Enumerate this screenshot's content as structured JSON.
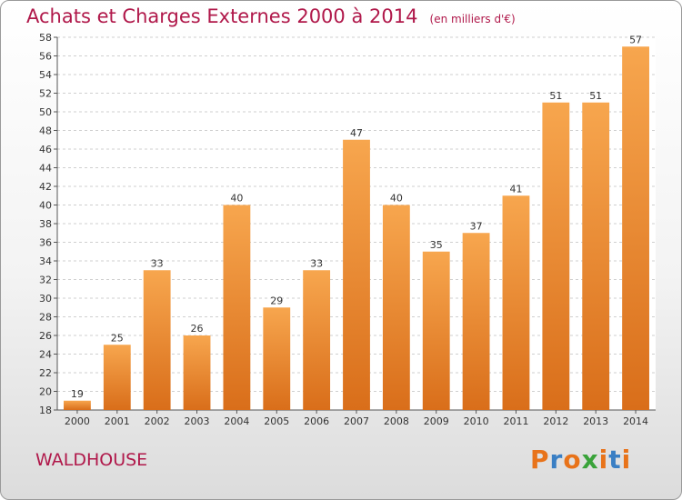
{
  "title": "Achats et Charges Externes 2000 à 2014",
  "unit": "(en milliers d'€)",
  "commune": "WALDHOUSE",
  "logo": {
    "text": "Proxiti",
    "colors": [
      "#e8731a",
      "#3a7fc4",
      "#e8731a",
      "#3aa33a",
      "#e8731a",
      "#3a7fc4",
      "#e8731a"
    ]
  },
  "colors": {
    "title": "#b0184a",
    "bar_light": "#f7a64e",
    "bar_dark": "#d96e1a",
    "grid": "#cfcfcf"
  },
  "chart_data": {
    "type": "bar",
    "title": "Achats et Charges Externes 2000 à 2014",
    "categories": [
      "2000",
      "2001",
      "2002",
      "2003",
      "2004",
      "2005",
      "2006",
      "2007",
      "2008",
      "2009",
      "2010",
      "2011",
      "2012",
      "2013",
      "2014"
    ],
    "values": [
      19,
      25,
      33,
      26,
      40,
      29,
      33,
      47,
      40,
      35,
      37,
      41,
      51,
      51,
      57
    ],
    "ylim": [
      18,
      58
    ],
    "yticks": [
      18,
      20,
      22,
      24,
      26,
      28,
      30,
      32,
      34,
      36,
      38,
      40,
      42,
      44,
      46,
      48,
      50,
      52,
      54,
      56,
      58
    ],
    "grid": true,
    "legend": "none"
  }
}
